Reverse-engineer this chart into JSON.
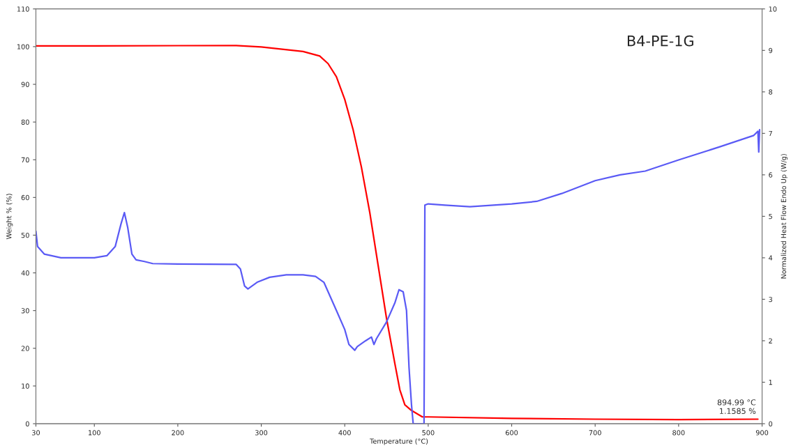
{
  "chart_data": {
    "type": "line",
    "xlabel": "Temperature (°C)",
    "ylabel": "Weight % (%)",
    "y2label": "Normalized Heat Flow Endo Up (W/g)",
    "xlim": [
      30,
      900
    ],
    "xticks": [
      30,
      100,
      200,
      300,
      400,
      500,
      600,
      700,
      800,
      900
    ],
    "ylim": [
      0,
      110
    ],
    "yticks": [
      0,
      10,
      20,
      30,
      40,
      50,
      60,
      70,
      80,
      90,
      100,
      110
    ],
    "y2lim": [
      0,
      10
    ],
    "y2ticks": [
      0,
      1,
      2,
      3,
      4,
      5,
      6,
      7,
      8,
      9,
      10
    ],
    "grid": false,
    "legend": false,
    "annotations": [
      "B4-PE-1G",
      {
        "text": "894.99 °C\n1.1585 %",
        "x": 894.99,
        "y": 1.1585
      }
    ],
    "series": [
      {
        "color": "#ff0000",
        "x": [
          30,
          100,
          270,
          300,
          350,
          370,
          380,
          390,
          400,
          410,
          420,
          430,
          440,
          450,
          460,
          466,
          472,
          480,
          493,
          500,
          600,
          700,
          800,
          894.99
        ],
        "values": [
          100.2,
          100.2,
          100.3,
          99.9,
          98.7,
          97.5,
          95.5,
          92,
          86,
          78,
          68,
          56,
          42,
          28,
          16,
          9,
          5,
          3.5,
          1.8,
          1.8,
          1.4,
          1.2,
          1.1,
          1.2
        ]
      },
      {
        "color": "#5a5af5",
        "axis": "y2",
        "x": [
          30,
          32,
          40,
          60,
          100,
          115,
          125,
          132,
          136,
          140,
          145,
          150,
          160,
          170,
          200,
          270,
          275,
          280,
          284,
          295,
          310,
          330,
          350,
          365,
          375,
          390,
          400,
          405,
          412,
          415,
          425,
          432,
          435,
          438,
          450,
          460,
          465,
          470,
          474,
          477,
          480,
          482,
          495,
          496,
          500,
          520,
          550,
          600,
          630,
          660,
          700,
          730,
          760,
          800,
          850,
          890,
          895,
          896,
          897
        ],
        "values": [
          4.64,
          4.27,
          4.09,
          4.0,
          4.0,
          4.05,
          4.27,
          4.82,
          5.09,
          4.73,
          4.09,
          3.95,
          3.91,
          3.86,
          3.85,
          3.84,
          3.73,
          3.32,
          3.25,
          3.41,
          3.53,
          3.59,
          3.59,
          3.55,
          3.41,
          2.73,
          2.27,
          1.91,
          1.77,
          1.86,
          2.0,
          2.09,
          1.91,
          2.05,
          2.45,
          2.91,
          3.23,
          3.18,
          2.73,
          1.36,
          0.45,
          0,
          0,
          5.27,
          5.3,
          5.27,
          5.23,
          5.3,
          5.36,
          5.55,
          5.86,
          6.0,
          6.09,
          6.36,
          6.68,
          6.95,
          7.05,
          6.55,
          7.09
        ]
      }
    ]
  }
}
